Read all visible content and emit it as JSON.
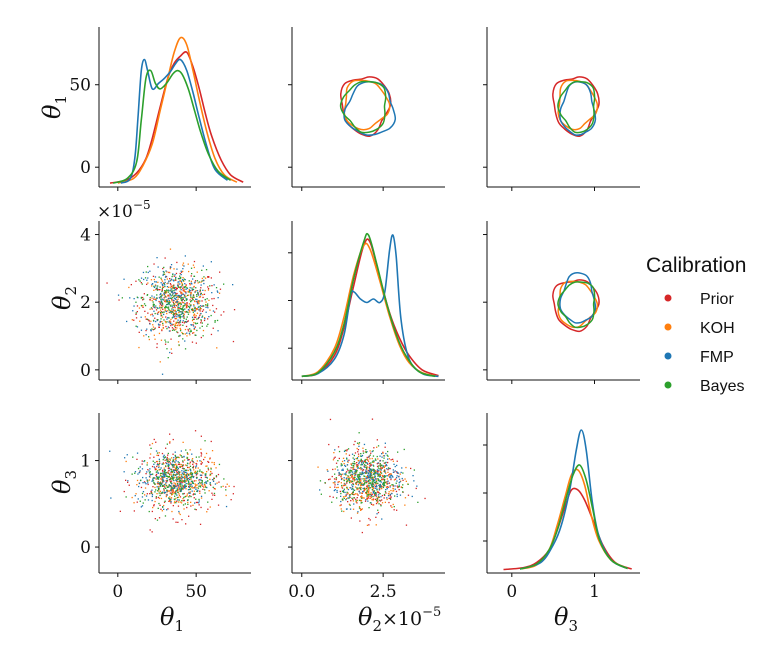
{
  "chart_data": {
    "type": "pairplot",
    "parameters": [
      "θ1",
      "θ2",
      "θ3"
    ],
    "axis_labels": {
      "theta1": {
        "base": "θ",
        "sub": "1"
      },
      "theta2": {
        "base": "θ",
        "sub": "2",
        "suffix": "×10",
        "exp": "−5"
      },
      "theta3": {
        "base": "θ",
        "sub": "3"
      }
    },
    "offset_text": {
      "base": "×10",
      "exp": "−5"
    },
    "ticks": {
      "theta1": {
        "values": [
          0,
          50
        ],
        "labels": [
          "0",
          "50"
        ]
      },
      "theta2_y": {
        "values": [
          0,
          2,
          4
        ],
        "labels": [
          "0",
          "2",
          "4"
        ]
      },
      "theta2_x": {
        "values": [
          0,
          2.5
        ],
        "labels": [
          "0.0",
          "2.5"
        ]
      },
      "theta3": {
        "values": [
          0,
          1
        ],
        "labels": [
          "0",
          "1"
        ]
      }
    },
    "limits": {
      "theta1": [
        -12,
        85
      ],
      "theta2": [
        -0.3,
        4.4
      ],
      "theta3": [
        -0.3,
        1.55
      ]
    },
    "legend": {
      "title": "Calibration",
      "placement": "right",
      "entries": [
        {
          "name": "Prior",
          "color": "#d62728"
        },
        {
          "name": "KOH",
          "color": "#ff7f0e"
        },
        {
          "name": "FMP",
          "color": "#1f77b4"
        },
        {
          "name": "Bayes",
          "color": "#2ca02c"
        }
      ]
    },
    "series": [
      {
        "name": "Prior",
        "color": "#d62728",
        "theta1_density": [
          [
            -5,
            0.5
          ],
          [
            5,
            2
          ],
          [
            12,
            6
          ],
          [
            18,
            14
          ],
          [
            22,
            25
          ],
          [
            27,
            42
          ],
          [
            32,
            58
          ],
          [
            36,
            66
          ],
          [
            40,
            70
          ],
          [
            44,
            72
          ],
          [
            48,
            64
          ],
          [
            52,
            52
          ],
          [
            56,
            38
          ],
          [
            60,
            26
          ],
          [
            66,
            13
          ],
          [
            72,
            5
          ],
          [
            80,
            1
          ]
        ],
        "theta2_density": [
          [
            0,
            0.2
          ],
          [
            0.5,
            1
          ],
          [
            1,
            6
          ],
          [
            1.3,
            14
          ],
          [
            1.6,
            26
          ],
          [
            1.9,
            37
          ],
          [
            2.1,
            38
          ],
          [
            2.4,
            28
          ],
          [
            2.7,
            18
          ],
          [
            3.0,
            11
          ],
          [
            3.3,
            6
          ],
          [
            3.7,
            2
          ],
          [
            4.2,
            0.4
          ]
        ],
        "theta3_density": [
          [
            -0.1,
            0.1
          ],
          [
            0.15,
            0.5
          ],
          [
            0.3,
            1.5
          ],
          [
            0.45,
            4
          ],
          [
            0.55,
            8
          ],
          [
            0.65,
            13
          ],
          [
            0.72,
            16
          ],
          [
            0.8,
            16
          ],
          [
            0.88,
            14
          ],
          [
            0.98,
            10
          ],
          [
            1.1,
            5
          ],
          [
            1.25,
            1.5
          ],
          [
            1.45,
            0.2
          ]
        ],
        "center": {
          "theta1": 38,
          "theta2": 1.95,
          "theta3": 0.77
        },
        "spread": {
          "theta1": 13,
          "theta2": 0.55,
          "theta3": 0.2
        }
      },
      {
        "name": "KOH",
        "color": "#ff7f0e",
        "theta1_density": [
          [
            0,
            0.5
          ],
          [
            10,
            3
          ],
          [
            16,
            10
          ],
          [
            22,
            22
          ],
          [
            27,
            40
          ],
          [
            32,
            58
          ],
          [
            36,
            72
          ],
          [
            40,
            80
          ],
          [
            44,
            76
          ],
          [
            48,
            62
          ],
          [
            52,
            46
          ],
          [
            57,
            28
          ],
          [
            62,
            14
          ],
          [
            68,
            5
          ],
          [
            76,
            1
          ]
        ],
        "theta2_density": [
          [
            0,
            0.2
          ],
          [
            0.5,
            1.5
          ],
          [
            1,
            8
          ],
          [
            1.3,
            17
          ],
          [
            1.6,
            29
          ],
          [
            1.9,
            37
          ],
          [
            2.1,
            36
          ],
          [
            2.4,
            27
          ],
          [
            2.7,
            17
          ],
          [
            3.0,
            9
          ],
          [
            3.3,
            4
          ],
          [
            3.7,
            1.2
          ],
          [
            4.2,
            0.2
          ]
        ],
        "theta3_density": [
          [
            0.1,
            0.2
          ],
          [
            0.3,
            1
          ],
          [
            0.45,
            4
          ],
          [
            0.55,
            9
          ],
          [
            0.65,
            15
          ],
          [
            0.72,
            19
          ],
          [
            0.8,
            20
          ],
          [
            0.88,
            17
          ],
          [
            0.96,
            11
          ],
          [
            1.05,
            6
          ],
          [
            1.2,
            2
          ],
          [
            1.4,
            0.3
          ]
        ],
        "center": {
          "theta1": 38,
          "theta2": 1.95,
          "theta3": 0.78
        },
        "spread": {
          "theta1": 11,
          "theta2": 0.5,
          "theta3": 0.17
        }
      },
      {
        "name": "FMP",
        "color": "#1f77b4",
        "theta1_density": [
          [
            2,
            0.5
          ],
          [
            8,
            3
          ],
          [
            11,
            15
          ],
          [
            13,
            38
          ],
          [
            15,
            62
          ],
          [
            17,
            68
          ],
          [
            19,
            62
          ],
          [
            22,
            52
          ],
          [
            26,
            55
          ],
          [
            30,
            58
          ],
          [
            34,
            62
          ],
          [
            37,
            66
          ],
          [
            40,
            68
          ],
          [
            44,
            62
          ],
          [
            48,
            50
          ],
          [
            52,
            36
          ],
          [
            57,
            20
          ],
          [
            62,
            8
          ],
          [
            70,
            2
          ]
        ],
        "theta2_density": [
          [
            0,
            0.2
          ],
          [
            0.5,
            1
          ],
          [
            1,
            5
          ],
          [
            1.3,
            12
          ],
          [
            1.5,
            23
          ],
          [
            1.6,
            24
          ],
          [
            1.8,
            22
          ],
          [
            2.0,
            21
          ],
          [
            2.2,
            22
          ],
          [
            2.4,
            21
          ],
          [
            2.55,
            24
          ],
          [
            2.7,
            36
          ],
          [
            2.8,
            40
          ],
          [
            2.9,
            34
          ],
          [
            3.05,
            16
          ],
          [
            3.3,
            5
          ],
          [
            3.7,
            1
          ],
          [
            4.2,
            0.2
          ]
        ],
        "theta3_density": [
          [
            0.1,
            0.2
          ],
          [
            0.35,
            1.5
          ],
          [
            0.5,
            5
          ],
          [
            0.6,
            9
          ],
          [
            0.7,
            16
          ],
          [
            0.78,
            24
          ],
          [
            0.84,
            28
          ],
          [
            0.9,
            24
          ],
          [
            0.97,
            14
          ],
          [
            1.05,
            7
          ],
          [
            1.2,
            2
          ],
          [
            1.4,
            0.3
          ]
        ],
        "center": {
          "theta1": 35,
          "theta2": 2.1,
          "theta3": 0.8
        },
        "spread": {
          "theta1": 12,
          "theta2": 0.55,
          "theta3": 0.15
        }
      },
      {
        "name": "Bayes",
        "color": "#2ca02c",
        "theta1_density": [
          [
            -3,
            0.5
          ],
          [
            6,
            3
          ],
          [
            12,
            12
          ],
          [
            15,
            35
          ],
          [
            18,
            58
          ],
          [
            21,
            62
          ],
          [
            24,
            55
          ],
          [
            27,
            52
          ],
          [
            31,
            55
          ],
          [
            35,
            60
          ],
          [
            38,
            62
          ],
          [
            41,
            60
          ],
          [
            45,
            52
          ],
          [
            49,
            40
          ],
          [
            53,
            28
          ],
          [
            58,
            16
          ],
          [
            64,
            7
          ],
          [
            72,
            2
          ]
        ],
        "theta2_density": [
          [
            0,
            0.2
          ],
          [
            0.5,
            1.2
          ],
          [
            1,
            7
          ],
          [
            1.3,
            15
          ],
          [
            1.6,
            28
          ],
          [
            1.9,
            38
          ],
          [
            2.05,
            40
          ],
          [
            2.3,
            32
          ],
          [
            2.6,
            21
          ],
          [
            2.9,
            12
          ],
          [
            3.2,
            6
          ],
          [
            3.6,
            1.5
          ],
          [
            4.1,
            0.2
          ]
        ],
        "theta3_density": [
          [
            0.1,
            0.2
          ],
          [
            0.3,
            1.2
          ],
          [
            0.45,
            4
          ],
          [
            0.55,
            8
          ],
          [
            0.65,
            14
          ],
          [
            0.74,
            19
          ],
          [
            0.82,
            21
          ],
          [
            0.9,
            18
          ],
          [
            0.98,
            12
          ],
          [
            1.06,
            6
          ],
          [
            1.2,
            2
          ],
          [
            1.4,
            0.3
          ]
        ],
        "center": {
          "theta1": 37,
          "theta2": 1.95,
          "theta3": 0.8
        },
        "spread": {
          "theta1": 11.5,
          "theta2": 0.5,
          "theta3": 0.16
        }
      }
    ]
  }
}
